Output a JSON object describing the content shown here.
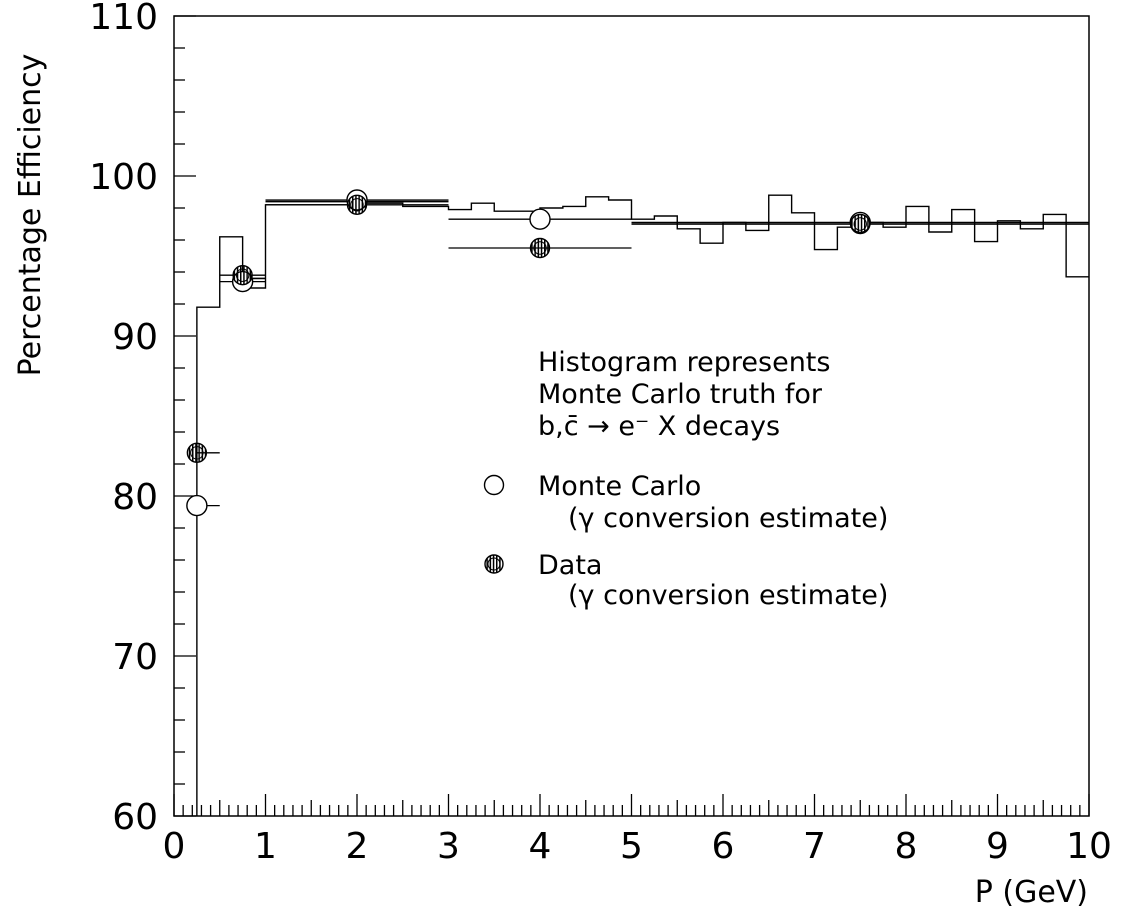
{
  "chart_data": {
    "type": "line",
    "title": "",
    "xlabel": "P (GeV)",
    "ylabel": "Percentage Efficiency",
    "xlim": [
      0,
      10
    ],
    "ylim": [
      60,
      110
    ],
    "x_ticks": [
      "0",
      "1",
      "2",
      "3",
      "4",
      "5",
      "6",
      "7",
      "8",
      "9",
      "10"
    ],
    "y_ticks": [
      "60",
      "70",
      "80",
      "90",
      "100",
      "110"
    ],
    "grid": false,
    "annotation": {
      "lines": [
        "Histogram represents",
        "Monte Carlo truth for",
        "b,c̄ → e⁻ X decays"
      ]
    },
    "legend": {
      "placement": "center-right",
      "entries": [
        {
          "symbol": "open-circle",
          "label": "Monte Carlo",
          "sublabel": "(γ conversion estimate)"
        },
        {
          "symbol": "hatched-circle",
          "label": "Data",
          "sublabel": "(γ conversion estimate)"
        }
      ]
    },
    "series": [
      {
        "name": "Histogram represents Monte Carlo truth for b,c̄ → e⁻ X decays",
        "kind": "histogram",
        "bins": [
          [
            0.25,
            0.5,
            91.8
          ],
          [
            0.5,
            0.75,
            96.2
          ],
          [
            0.75,
            1.0,
            93.0
          ],
          [
            1.0,
            1.5,
            98.2
          ],
          [
            1.5,
            2.0,
            98.2
          ],
          [
            2.0,
            2.5,
            98.3
          ],
          [
            2.5,
            3.0,
            98.1
          ],
          [
            3.0,
            3.25,
            97.9
          ],
          [
            3.25,
            3.5,
            98.3
          ],
          [
            3.5,
            3.75,
            97.8
          ],
          [
            3.75,
            4.0,
            97.8
          ],
          [
            4.0,
            4.25,
            98.0
          ],
          [
            4.25,
            4.5,
            98.1
          ],
          [
            4.5,
            4.75,
            98.7
          ],
          [
            4.75,
            5.0,
            98.5
          ],
          [
            5.0,
            5.25,
            97.3
          ],
          [
            5.25,
            5.5,
            97.5
          ],
          [
            5.5,
            5.75,
            96.7
          ],
          [
            5.75,
            6.0,
            95.8
          ],
          [
            6.0,
            6.25,
            97.1
          ],
          [
            6.25,
            6.5,
            96.6
          ],
          [
            6.5,
            6.75,
            98.8
          ],
          [
            6.75,
            7.0,
            97.7
          ],
          [
            7.0,
            7.25,
            95.4
          ],
          [
            7.25,
            7.5,
            96.8
          ],
          [
            7.5,
            7.75,
            97.1
          ],
          [
            7.75,
            8.0,
            96.8
          ],
          [
            8.0,
            8.25,
            98.1
          ],
          [
            8.25,
            8.5,
            96.5
          ],
          [
            8.5,
            8.75,
            97.9
          ],
          [
            8.75,
            9.0,
            95.9
          ],
          [
            9.0,
            9.25,
            97.2
          ],
          [
            9.25,
            9.5,
            96.7
          ],
          [
            9.5,
            9.75,
            97.6
          ],
          [
            9.75,
            10.0,
            93.7
          ]
        ],
        "reference_lines": [
          {
            "x0": 0.75,
            "x1": 1.0,
            "y": 93.6
          },
          {
            "x0": 1.0,
            "x1": 3.0,
            "y": 98.4
          },
          {
            "x0": 5.0,
            "x1": 10.0,
            "y": 97.0
          }
        ]
      },
      {
        "name": "Monte Carlo",
        "kind": "points",
        "marker": "open-circle",
        "points": [
          {
            "x": 0.25,
            "y": 79.4,
            "xerr": [
              0.0,
              0.25
            ]
          },
          {
            "x": 0.75,
            "y": 93.4,
            "xerr": [
              0.25,
              0.25
            ]
          },
          {
            "x": 2.0,
            "y": 98.5,
            "xerr": [
              1.0,
              1.0
            ]
          },
          {
            "x": 4.0,
            "y": 97.3,
            "xerr": [
              1.0,
              1.0
            ]
          },
          {
            "x": 7.5,
            "y": 97.1,
            "xerr": [
              2.5,
              2.5
            ]
          }
        ]
      },
      {
        "name": "Data",
        "kind": "points",
        "marker": "hatched-circle",
        "points": [
          {
            "x": 0.25,
            "y": 82.7,
            "xerr": [
              0.0,
              0.25
            ]
          },
          {
            "x": 0.75,
            "y": 93.8,
            "xerr": [
              0.25,
              0.25
            ]
          },
          {
            "x": 2.0,
            "y": 98.2,
            "xerr": [
              1.0,
              1.0
            ]
          },
          {
            "x": 4.0,
            "y": 95.5,
            "xerr": [
              1.0,
              1.0
            ]
          },
          {
            "x": 7.5,
            "y": 97.0,
            "xerr": [
              2.5,
              2.5
            ]
          }
        ]
      }
    ]
  }
}
